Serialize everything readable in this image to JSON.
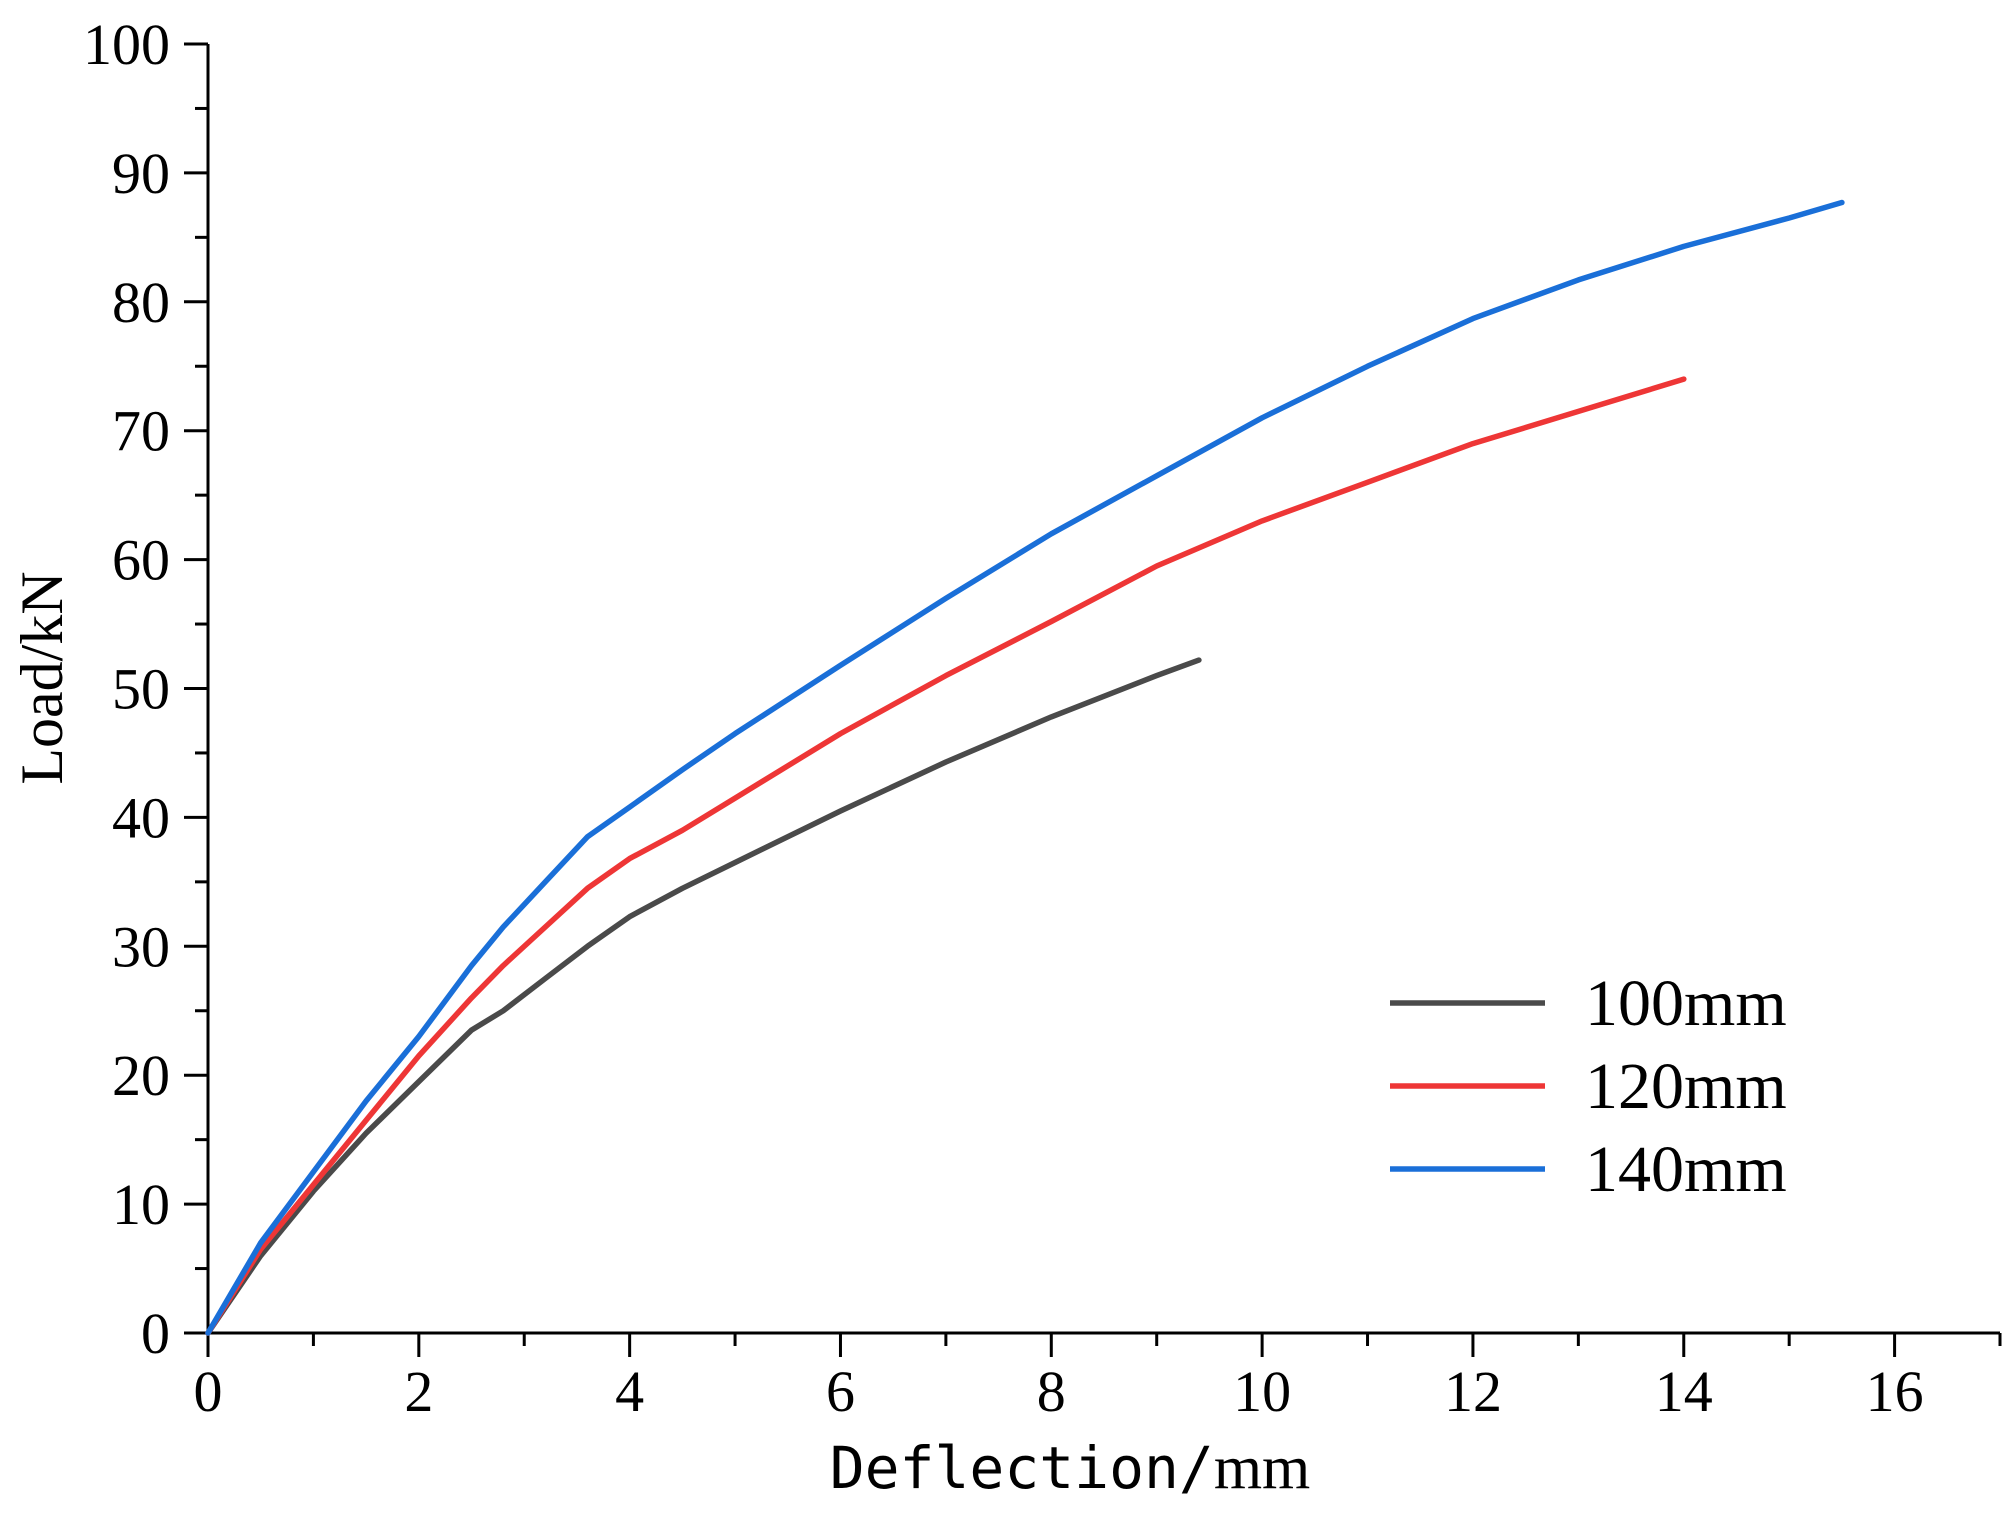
{
  "chart_data": {
    "type": "line",
    "title": "",
    "xlabel_prefix": "Deflection/",
    "xlabel_unit": "mm",
    "ylabel": "Load/kN",
    "xlim": [
      0,
      17
    ],
    "ylim": [
      0,
      100
    ],
    "x_ticks": [
      0,
      2,
      4,
      6,
      8,
      10,
      12,
      14,
      16
    ],
    "y_ticks": [
      0,
      10,
      20,
      30,
      40,
      50,
      60,
      70,
      80,
      90,
      100
    ],
    "legend_position": "bottom-right",
    "series": [
      {
        "name": "100mm",
        "color": "#4a4a4a",
        "points": [
          [
            0,
            0
          ],
          [
            0.5,
            6
          ],
          [
            1,
            11
          ],
          [
            1.5,
            15.5
          ],
          [
            2,
            19.5
          ],
          [
            2.5,
            23.5
          ],
          [
            2.8,
            25
          ],
          [
            3.2,
            27.5
          ],
          [
            3.6,
            30
          ],
          [
            4,
            32.3
          ],
          [
            4.5,
            34.5
          ],
          [
            5,
            36.5
          ],
          [
            6,
            40.5
          ],
          [
            7,
            44.3
          ],
          [
            8,
            47.8
          ],
          [
            9,
            51
          ],
          [
            9.4,
            52.2
          ]
        ]
      },
      {
        "name": "120mm",
        "color": "#ee3636",
        "points": [
          [
            0,
            0
          ],
          [
            0.5,
            6.5
          ],
          [
            1,
            11.5
          ],
          [
            1.5,
            16.5
          ],
          [
            2,
            21.5
          ],
          [
            2.5,
            26
          ],
          [
            2.8,
            28.5
          ],
          [
            3.2,
            31.5
          ],
          [
            3.6,
            34.5
          ],
          [
            4,
            36.8
          ],
          [
            4.5,
            39
          ],
          [
            5,
            41.5
          ],
          [
            6,
            46.5
          ],
          [
            7,
            51
          ],
          [
            8,
            55.2
          ],
          [
            9,
            59.5
          ],
          [
            10,
            63
          ],
          [
            11,
            66
          ],
          [
            12,
            69
          ],
          [
            13,
            71.5
          ],
          [
            14,
            74
          ]
        ]
      },
      {
        "name": "140mm",
        "color": "#1a6fd8",
        "points": [
          [
            0,
            0
          ],
          [
            0.5,
            7
          ],
          [
            1,
            12.5
          ],
          [
            1.5,
            18
          ],
          [
            2,
            23
          ],
          [
            2.5,
            28.5
          ],
          [
            2.8,
            31.5
          ],
          [
            3.2,
            35
          ],
          [
            3.6,
            38.5
          ],
          [
            4,
            40.8
          ],
          [
            4.5,
            43.7
          ],
          [
            5,
            46.5
          ],
          [
            6,
            51.8
          ],
          [
            7,
            57
          ],
          [
            8,
            62
          ],
          [
            9,
            66.5
          ],
          [
            10,
            71
          ],
          [
            11,
            75
          ],
          [
            12,
            78.7
          ],
          [
            13,
            81.7
          ],
          [
            14,
            84.3
          ],
          [
            15,
            86.5
          ],
          [
            15.5,
            87.7
          ]
        ]
      }
    ]
  }
}
